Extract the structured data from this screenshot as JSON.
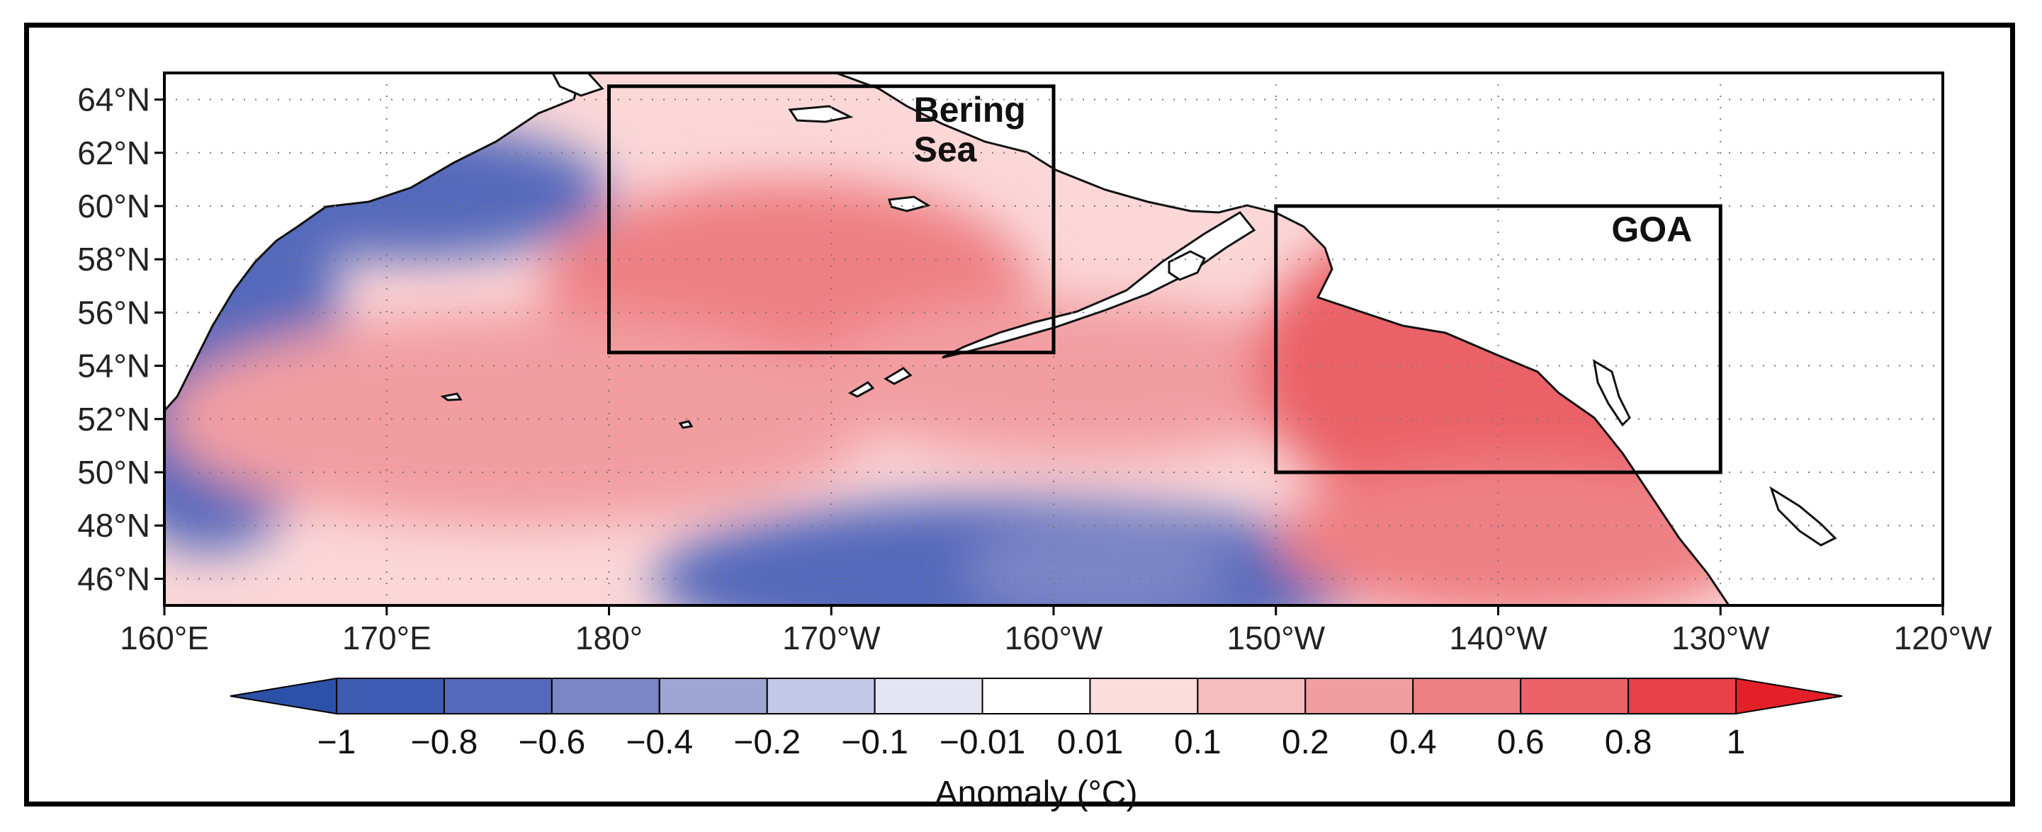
{
  "figure": {
    "lon_ticks": [
      {
        "lon": 160,
        "label": "160°E"
      },
      {
        "lon": 170,
        "label": "170°E"
      },
      {
        "lon": 180,
        "label": "180°"
      },
      {
        "lon": 190,
        "label": "170°W"
      },
      {
        "lon": 200,
        "label": "160°W"
      },
      {
        "lon": 210,
        "label": "150°W"
      },
      {
        "lon": 220,
        "label": "140°W"
      },
      {
        "lon": 230,
        "label": "130°W"
      },
      {
        "lon": 240,
        "label": "120°W"
      }
    ],
    "lat_ticks": [
      {
        "lat": 46,
        "label": "46°N"
      },
      {
        "lat": 48,
        "label": "48°N"
      },
      {
        "lat": 50,
        "label": "50°N"
      },
      {
        "lat": 52,
        "label": "52°N"
      },
      {
        "lat": 54,
        "label": "54°N"
      },
      {
        "lat": 56,
        "label": "56°N"
      },
      {
        "lat": 58,
        "label": "58°N"
      },
      {
        "lat": 60,
        "label": "60°N"
      },
      {
        "lat": 62,
        "label": "62°N"
      },
      {
        "lat": 64,
        "label": "64°N"
      }
    ],
    "lon_range": [
      160,
      240
    ],
    "lat_range": [
      45,
      65
    ],
    "regions": [
      {
        "name": "Bering Sea",
        "label_lines": [
          "Bering",
          "Sea"
        ],
        "lon_min": 180,
        "lon_max": 200,
        "lat_min": 54.5,
        "lat_max": 64.5
      },
      {
        "name": "GOA",
        "label_lines": [
          "GOA"
        ],
        "lon_min": 210,
        "lon_max": 230,
        "lat_min": 50,
        "lat_max": 60
      }
    ],
    "colorbar": {
      "title": "Anomaly (°C)",
      "tick_labels": [
        "−1",
        "−0.8",
        "−0.6",
        "−0.4",
        "−0.2",
        "−0.1",
        "−0.01",
        "0.01",
        "0.1",
        "0.2",
        "0.4",
        "0.6",
        "0.8",
        "1"
      ],
      "colors": [
        "#2c51a8",
        "#3d5cb2",
        "#5569bc",
        "#7a86c6",
        "#9ea6d4",
        "#c3c8e6",
        "#e3e5f3",
        "#ffffff",
        "#fbdddd",
        "#f6bcbe",
        "#f29ea1",
        "#ee8084",
        "#ea6267",
        "#e84047",
        "#e31f27"
      ]
    }
  },
  "chart_data": {
    "type": "heatmap",
    "title": "",
    "xlabel": "",
    "ylabel": "",
    "xlim": [
      160,
      240
    ],
    "ylim": [
      45,
      65
    ],
    "colorbar_label": "Anomaly (°C)",
    "levels": [
      -1,
      -0.8,
      -0.6,
      -0.4,
      -0.2,
      -0.1,
      -0.01,
      0.01,
      0.1,
      0.2,
      0.4,
      0.6,
      0.8,
      1
    ],
    "anomaly_centers": [
      {
        "lon": 162,
        "lat": 55,
        "value": -0.7,
        "rx": 6,
        "ry": 8
      },
      {
        "lon": 171,
        "lat": 60.5,
        "value": -0.7,
        "rx": 9,
        "ry": 2.5
      },
      {
        "lon": 198,
        "lat": 46,
        "value": -0.7,
        "rx": 16,
        "ry": 3
      },
      {
        "lon": 202,
        "lat": 46.3,
        "value": -0.5,
        "rx": 6,
        "ry": 2
      },
      {
        "lon": 188,
        "lat": 57,
        "value": 0.6,
        "rx": 11,
        "ry": 4
      },
      {
        "lon": 176,
        "lat": 52,
        "value": 0.3,
        "rx": 16,
        "ry": 4
      },
      {
        "lon": 201,
        "lat": 53.5,
        "value": 0.3,
        "rx": 12,
        "ry": 3
      },
      {
        "lon": 220,
        "lat": 54,
        "value": 0.7,
        "rx": 11,
        "ry": 6
      },
      {
        "lon": 221,
        "lat": 47.5,
        "value": 0.5,
        "rx": 11,
        "ry": 3
      }
    ]
  }
}
